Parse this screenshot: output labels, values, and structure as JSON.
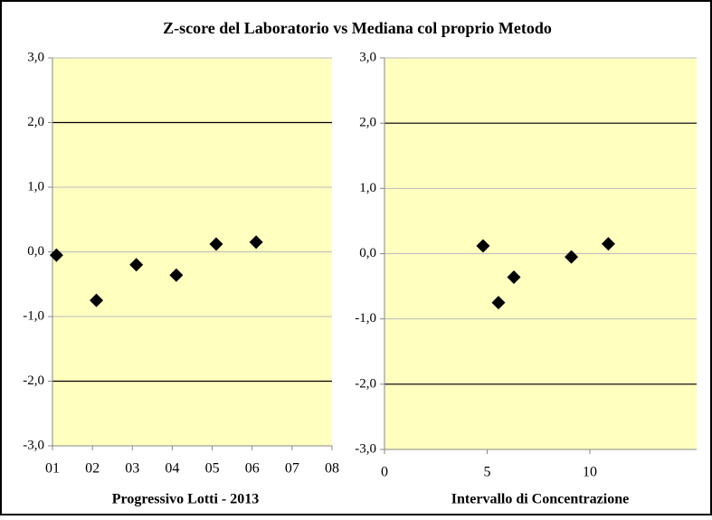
{
  "title": "Z-score del Laboratorio vs Mediana col proprio Metodo",
  "chart_data": [
    {
      "type": "scatter",
      "xlabel": "Progressivo Lotti  - 2013",
      "x": [
        1.1,
        2.1,
        3.1,
        4.1,
        5.1,
        6.1
      ],
      "series": [
        {
          "color": "#000000",
          "values": [
            -0.05,
            -0.75,
            -0.2,
            -0.36,
            0.12,
            0.15
          ]
        }
      ],
      "xlim": [
        1,
        8
      ],
      "xticks": [
        {
          "value": 1,
          "label": "01"
        },
        {
          "value": 2,
          "label": "02"
        },
        {
          "value": 3,
          "label": "03"
        },
        {
          "value": 4,
          "label": "04"
        },
        {
          "value": 5,
          "label": "05"
        },
        {
          "value": 6,
          "label": "06"
        },
        {
          "value": 7,
          "label": "07"
        },
        {
          "value": 8,
          "label": "08"
        }
      ],
      "ylim": [
        -3,
        3
      ],
      "yticks": [
        {
          "value": -3,
          "label": "-3,0"
        },
        {
          "value": -2,
          "label": "-2,0"
        },
        {
          "value": -1,
          "label": "-1,0"
        },
        {
          "value": 0,
          "label": "0,0"
        },
        {
          "value": 1,
          "label": "1,0"
        },
        {
          "value": 2,
          "label": "2,0"
        },
        {
          "value": 3,
          "label": "3,0"
        }
      ],
      "reference_lines": [
        2,
        -2
      ],
      "grid": true,
      "background": "#ffffc0"
    },
    {
      "type": "scatter",
      "xlabel": "Intervallo di Concentrazione",
      "x": [
        4.8,
        5.55,
        6.3,
        9.1,
        10.9
      ],
      "series": [
        {
          "color": "#000000",
          "values": [
            0.12,
            -0.75,
            -0.36,
            -0.05,
            0.15
          ]
        }
      ],
      "xlim": [
        0,
        15.2
      ],
      "xticks": [
        0,
        5,
        10
      ],
      "ylim": [
        -3,
        3
      ],
      "yticks": [
        {
          "value": -3,
          "label": "-3,0"
        },
        {
          "value": -2,
          "label": "-2,0"
        },
        {
          "value": -1,
          "label": "-1,0"
        },
        {
          "value": 0,
          "label": "0,0"
        },
        {
          "value": 1,
          "label": "1,0"
        },
        {
          "value": 2,
          "label": "2,0"
        },
        {
          "value": 3,
          "label": "3,0"
        }
      ],
      "reference_lines": [
        2,
        -2
      ],
      "grid": true,
      "background": "#ffffc0"
    }
  ]
}
